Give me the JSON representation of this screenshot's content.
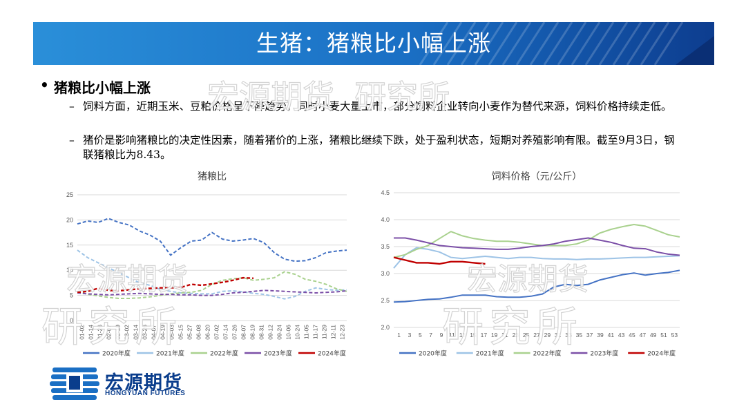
{
  "header": {
    "title": "生猪：猪粮比小幅上涨"
  },
  "content": {
    "bullet": "猪粮比小幅上涨",
    "points": [
      "饲料方面，近期玉米、豆粕价格呈下降趋势，同时小麦大量上市，部分饲料企业转向小麦作为替代来源，饲料价格持续走低。",
      "猪价是影响猪粮比的决定性因素，随着猪价的上涨，猪粮比继续下跌，处于盈利状态，短期对养殖影响有限。截至9月3日，钢联猪粮比为8.43。"
    ]
  },
  "watermark": {
    "line1": "宏源期货",
    "line2": "研究所"
  },
  "logo": {
    "cn": "宏源期货",
    "en": "HONGYUAN FUTURES"
  },
  "chart_data": [
    {
      "type": "line",
      "title": "猪粮比",
      "ylim": [
        0,
        25
      ],
      "yticks": [
        0,
        5,
        10,
        15,
        20,
        25
      ],
      "grid": true,
      "legend_position": "bottom",
      "x_ticklabels": [
        "01-02",
        "01-14",
        "01-26",
        "02-07",
        "02-19",
        "03-02",
        "03-14",
        "03-26",
        "04-07",
        "04-19",
        "05-03",
        "05-15",
        "05-27",
        "06-08",
        "06-20",
        "07-02",
        "07-14",
        "07-26",
        "08-07",
        "08-19",
        "08-31",
        "09-12",
        "09-24",
        "10-06",
        "10-24",
        "11-05",
        "11-17",
        "11-29",
        "12-11",
        "12-23"
      ],
      "series": [
        {
          "name": "2020年度",
          "color": "#4472C4",
          "values": [
            19.2,
            19.8,
            19.5,
            20.3,
            19.5,
            19.0,
            17.8,
            17.0,
            15.8,
            13.0,
            14.5,
            15.8,
            16.0,
            17.5,
            16.2,
            15.8,
            16.0,
            16.3,
            15.5,
            13.5,
            12.2,
            11.8,
            11.9,
            12.5,
            13.5,
            13.8,
            14.0
          ]
        },
        {
          "name": "2021年度",
          "color": "#9DC3E6",
          "values": [
            14.0,
            12.5,
            11.5,
            10.5,
            9.5,
            8.5,
            7.5,
            7.0,
            6.2,
            5.8,
            5.5,
            5.4,
            5.3,
            5.3,
            5.8,
            5.9,
            5.7,
            5.4,
            5.2,
            4.8,
            4.3,
            4.8,
            5.8,
            6.5,
            6.2,
            6.0,
            6.1
          ]
        },
        {
          "name": "2022年度",
          "color": "#A9D18E",
          "values": [
            5.8,
            5.2,
            4.9,
            4.6,
            4.4,
            4.4,
            4.5,
            4.7,
            5.0,
            5.3,
            5.5,
            5.6,
            6.0,
            7.2,
            8.0,
            8.3,
            8.5,
            8.0,
            8.2,
            8.5,
            9.7,
            9.2,
            8.2,
            7.8,
            7.2,
            6.3,
            5.8
          ]
        },
        {
          "name": "2023年度",
          "color": "#7B4FA7",
          "values": [
            5.5,
            5.3,
            5.2,
            5.1,
            5.2,
            5.3,
            5.4,
            5.3,
            5.2,
            5.2,
            5.1,
            5.1,
            5.0,
            5.0,
            5.2,
            5.5,
            5.6,
            5.8,
            6.0,
            5.9,
            5.8,
            5.7,
            5.6,
            5.5,
            5.6,
            5.7,
            5.9
          ]
        },
        {
          "name": "2024年度",
          "color": "#C00000",
          "values": [
            5.6,
            5.8,
            6.4,
            6.0,
            5.9,
            6.1,
            6.3,
            6.4,
            6.5,
            6.5,
            6.6,
            7.2,
            7.0,
            7.3,
            7.6,
            8.0,
            8.5,
            8.4
          ]
        }
      ]
    },
    {
      "type": "line",
      "title": "饲料价格（元/公斤）",
      "ylim": [
        2.0,
        4.5
      ],
      "yticks": [
        2.0,
        2.5,
        3.0,
        3.5,
        4.0,
        4.5
      ],
      "grid": true,
      "legend_position": "bottom",
      "x_ticklabels": [
        "1",
        "3",
        "5",
        "7",
        "9",
        "11",
        "13",
        "15",
        "17",
        "19",
        "21",
        "23",
        "25",
        "27",
        "29",
        "31",
        "33",
        "35",
        "37",
        "39",
        "41",
        "43",
        "45",
        "47",
        "49",
        "51",
        "53"
      ],
      "series": [
        {
          "name": "2020年度",
          "color": "#4472C4",
          "values": [
            2.47,
            2.48,
            2.5,
            2.52,
            2.53,
            2.56,
            2.6,
            2.6,
            2.6,
            2.57,
            2.56,
            2.56,
            2.58,
            2.62,
            2.75,
            2.8,
            2.78,
            2.8,
            2.88,
            2.93,
            2.98,
            3.01,
            2.97,
            3.0,
            3.02,
            3.06
          ]
        },
        {
          "name": "2021年度",
          "color": "#9DC3E6",
          "values": [
            3.1,
            3.35,
            3.48,
            3.45,
            3.4,
            3.3,
            3.28,
            3.3,
            3.32,
            3.3,
            3.28,
            3.3,
            3.3,
            3.28,
            3.27,
            3.27,
            3.26,
            3.27,
            3.27,
            3.28,
            3.29,
            3.3,
            3.3,
            3.31,
            3.32,
            3.33
          ]
        },
        {
          "name": "2022年度",
          "color": "#A9D18E",
          "values": [
            3.3,
            3.35,
            3.45,
            3.52,
            3.65,
            3.78,
            3.7,
            3.65,
            3.62,
            3.6,
            3.6,
            3.58,
            3.55,
            3.52,
            3.52,
            3.52,
            3.55,
            3.62,
            3.75,
            3.82,
            3.87,
            3.91,
            3.88,
            3.8,
            3.72,
            3.68
          ]
        },
        {
          "name": "2023年度",
          "color": "#7B4FA7",
          "values": [
            3.66,
            3.66,
            3.62,
            3.57,
            3.52,
            3.5,
            3.48,
            3.47,
            3.46,
            3.45,
            3.45,
            3.47,
            3.5,
            3.52,
            3.55,
            3.6,
            3.63,
            3.66,
            3.62,
            3.58,
            3.52,
            3.47,
            3.46,
            3.4,
            3.36,
            3.34
          ]
        },
        {
          "name": "2024年度",
          "color": "#C00000",
          "values": [
            3.3,
            3.25,
            3.2,
            3.2,
            3.18,
            3.22,
            3.22,
            3.2,
            3.18
          ]
        }
      ]
    }
  ]
}
